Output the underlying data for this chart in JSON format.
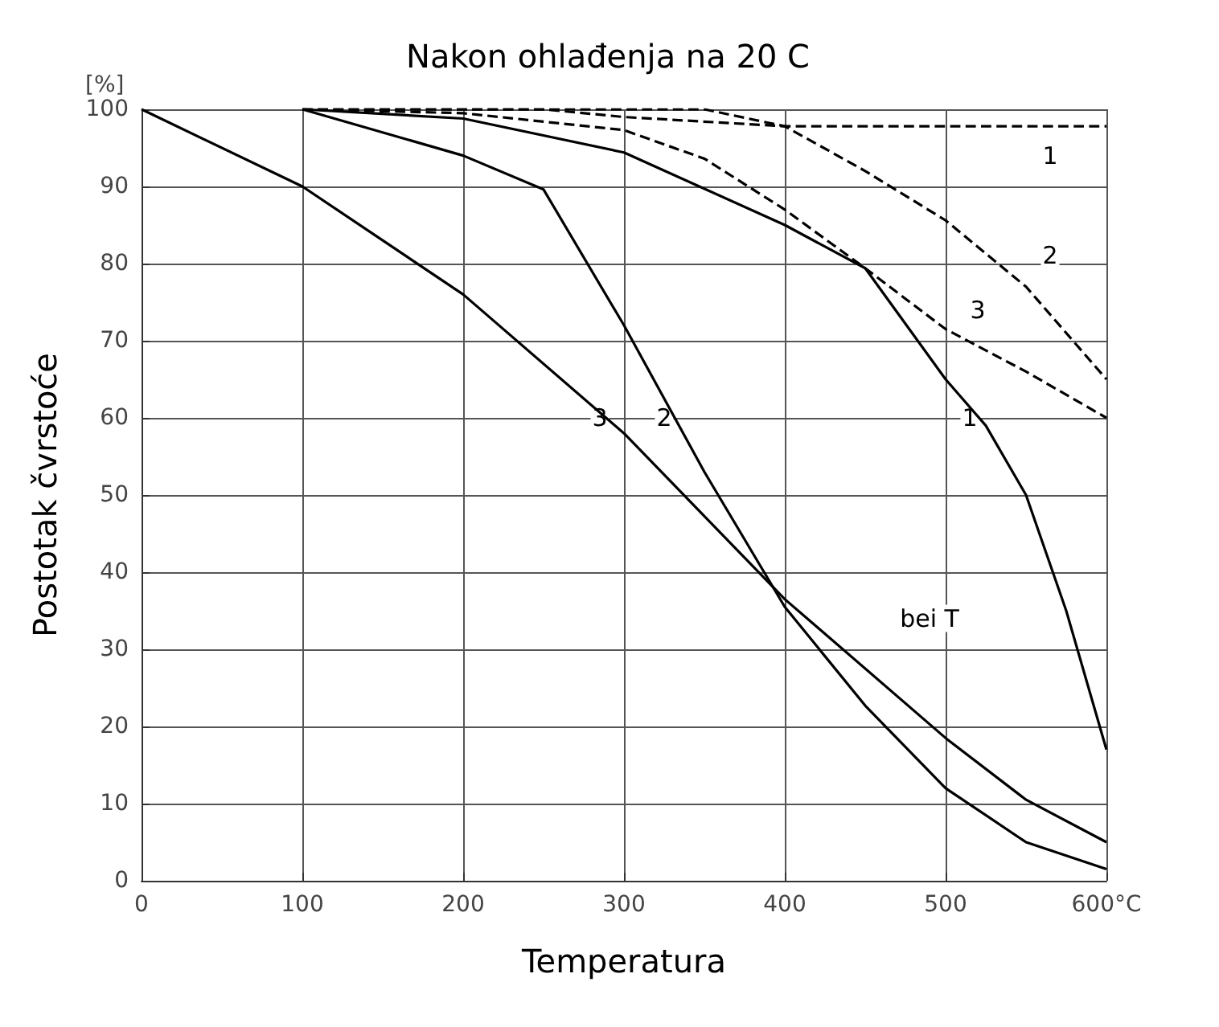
{
  "chart_data": {
    "type": "line",
    "title": "Nakon ohlađenja na 20 C",
    "xlabel": "Temperatura",
    "ylabel": "Postotak čvrstoće",
    "series": [
      {
        "color": "#000000",
        "line_style": "solid",
        "x": [
          0,
          100,
          200,
          300,
          400,
          500,
          550,
          600
        ],
        "values": [
          100,
          90,
          76,
          58,
          36.5,
          18.5,
          10.5,
          5
        ]
      },
      {
        "color": "#000000",
        "line_style": "solid",
        "x": [
          100,
          200,
          250,
          300,
          350,
          400,
          450,
          500,
          550,
          600
        ],
        "values": [
          100,
          94,
          89.6,
          72,
          53,
          35.5,
          22.7,
          12,
          5,
          1.5
        ]
      },
      {
        "color": "#000000",
        "line_style": "solid",
        "x": [
          100,
          200,
          300,
          400,
          450,
          500,
          525,
          550,
          575,
          600
        ],
        "values": [
          100,
          98.8,
          94.4,
          85,
          79.4,
          65,
          59,
          50,
          35,
          17
        ]
      },
      {
        "color": "#000000",
        "line_style": "dashed",
        "x": [
          100,
          250,
          300,
          400,
          500,
          600
        ],
        "values": [
          100,
          100,
          99,
          97.8,
          97.8,
          97.8
        ]
      },
      {
        "color": "#000000",
        "line_style": "dashed",
        "x": [
          100,
          350,
          400,
          450,
          500,
          550,
          600
        ],
        "values": [
          100,
          100,
          97.8,
          92,
          85.6,
          77,
          65
        ]
      },
      {
        "color": "#000000",
        "line_style": "dashed",
        "x": [
          100,
          200,
          300,
          350,
          400,
          450,
          500,
          550,
          600
        ],
        "values": [
          100,
          99.5,
          97.3,
          93.6,
          87,
          79.4,
          71.5,
          66,
          60
        ]
      }
    ],
    "xlim": [
      0,
      600
    ],
    "xticks": [
      0,
      100,
      200,
      300,
      400,
      500,
      {
        "value": 600,
        "label": "600°C"
      }
    ],
    "ylim": [
      0,
      100
    ],
    "yticks": [
      0,
      10,
      20,
      30,
      40,
      50,
      60,
      70,
      80,
      90,
      100
    ],
    "grid": true,
    "marker": "none",
    "annotations": [
      "[%]",
      {
        "text": "3",
        "x": 285,
        "y": 60
      },
      {
        "text": "2",
        "x": 325,
        "y": 60
      },
      {
        "text": "1",
        "x": 515,
        "y": 60
      },
      {
        "text": "1",
        "x": 565,
        "y": 94
      },
      {
        "text": "2",
        "x": 565,
        "y": 81
      },
      {
        "text": "3",
        "x": 520,
        "y": 74
      },
      {
        "text": "bei T",
        "x": 490,
        "y": 34
      }
    ]
  }
}
